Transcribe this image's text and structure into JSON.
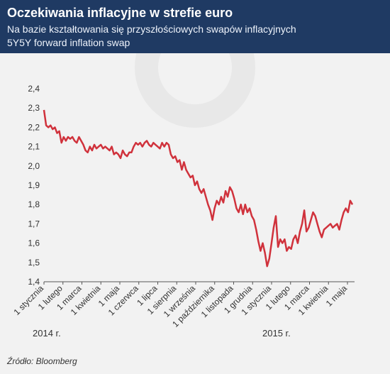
{
  "header": {
    "title": "Oczekiwania inflacyjne w strefie euro",
    "subtitle_line1": "Na bazie kształtowania się przyszłościowych swapów inflacyjnych",
    "subtitle_line2": "5Y5Y forward inflation swap"
  },
  "source": "Źródło: Bloomberg",
  "years": [
    "2014 r.",
    "2015 r."
  ],
  "colors": {
    "header": "#1f3a63",
    "line": "#d0323c",
    "background": "#f2f2f2"
  },
  "chart_data": {
    "type": "line",
    "title": "",
    "xlabel": "",
    "ylabel": "",
    "ylim": [
      1.4,
      2.4
    ],
    "yticks": [
      "2,4",
      "2,3",
      "2,2",
      "2,1",
      "2,0",
      "1,9",
      "1,8",
      "1,7",
      "1,6",
      "1,5",
      "1,4"
    ],
    "xticks": [
      "1 stycznia",
      "1 lutego",
      "1 marca",
      "1 kwietnia",
      "1 maja",
      "1 czerwca",
      "1 lipca",
      "1 sierpnia",
      "1 września",
      "1 października",
      "1 listopada",
      "1 grudnia",
      "1 stycznia",
      "1 lutego",
      "1 marca",
      "1 kwietnia",
      "1 maja"
    ],
    "grid": false,
    "series": [
      {
        "values": [
          2.29,
          2.21,
          2.2,
          2.21,
          2.19,
          2.2,
          2.17,
          2.18,
          2.12,
          2.15,
          2.13,
          2.15,
          2.14,
          2.15,
          2.13,
          2.12,
          2.15,
          2.13,
          2.11,
          2.08,
          2.07,
          2.1,
          2.08,
          2.11,
          2.09,
          2.1,
          2.11,
          2.09,
          2.1,
          2.09,
          2.08,
          2.1,
          2.06,
          2.07,
          2.06,
          2.04,
          2.08,
          2.06,
          2.05,
          2.07,
          2.07,
          2.1,
          2.12,
          2.11,
          2.12,
          2.1,
          2.12,
          2.13,
          2.11,
          2.1,
          2.12,
          2.11,
          2.1,
          2.09,
          2.12,
          2.1,
          2.12,
          2.11,
          2.06,
          2.04,
          2.05,
          2.02,
          2.03,
          1.98,
          2.02,
          1.98,
          1.96,
          1.94,
          1.95,
          1.9,
          1.92,
          1.88,
          1.86,
          1.88,
          1.84,
          1.8,
          1.77,
          1.72,
          1.78,
          1.82,
          1.8,
          1.84,
          1.81,
          1.87,
          1.84,
          1.89,
          1.87,
          1.83,
          1.78,
          1.76,
          1.8,
          1.75,
          1.8,
          1.76,
          1.78,
          1.74,
          1.72,
          1.67,
          1.61,
          1.56,
          1.6,
          1.55,
          1.48,
          1.52,
          1.6,
          1.68,
          1.74,
          1.58,
          1.62,
          1.6,
          1.62,
          1.56,
          1.58,
          1.57,
          1.62,
          1.64,
          1.6,
          1.66,
          1.7,
          1.77,
          1.66,
          1.68,
          1.72,
          1.76,
          1.74,
          1.7,
          1.66,
          1.63,
          1.67,
          1.68,
          1.69,
          1.7,
          1.68,
          1.69,
          1.7,
          1.67,
          1.72,
          1.76,
          1.78,
          1.76,
          1.82,
          1.8
        ]
      }
    ]
  }
}
